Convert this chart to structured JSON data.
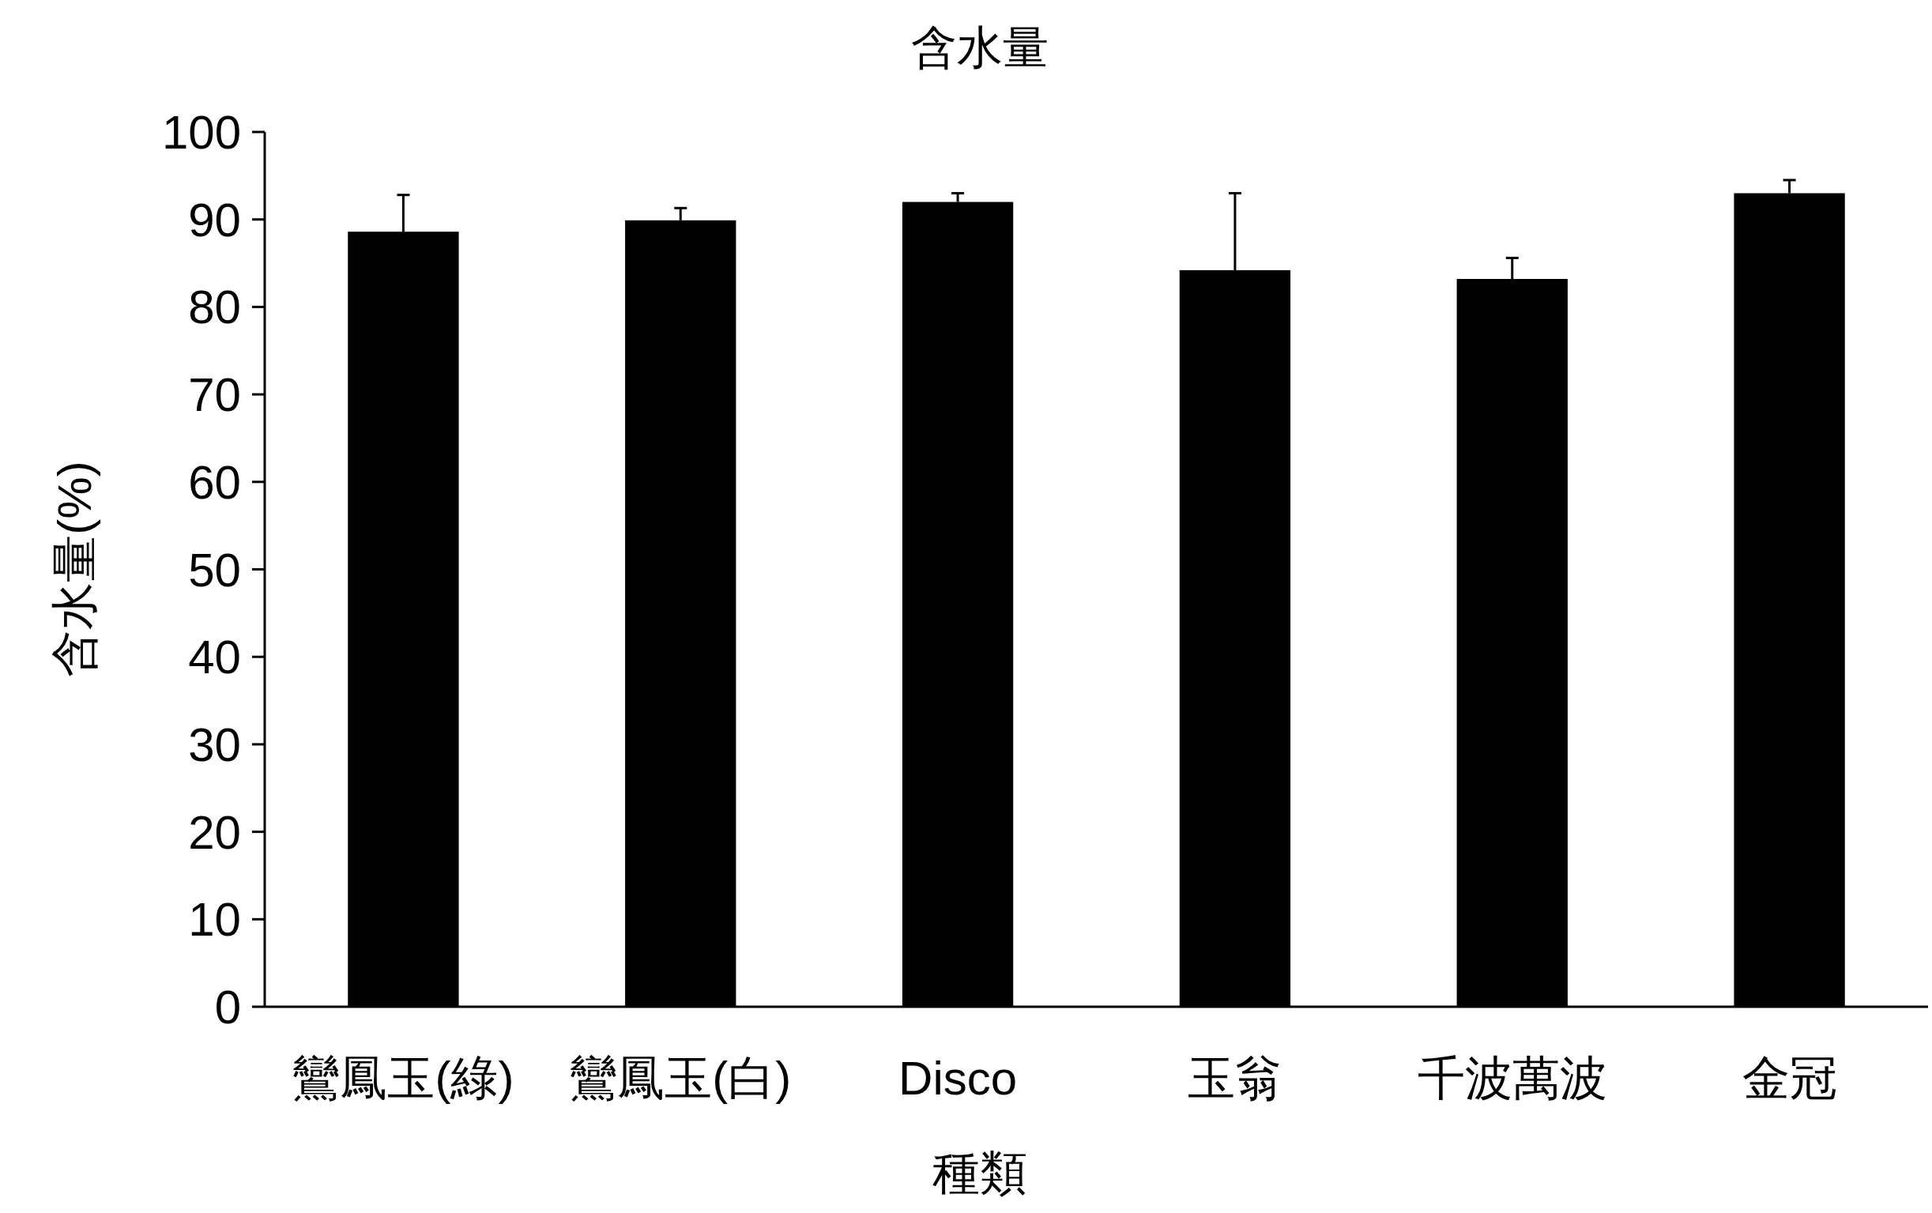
{
  "chart_data": {
    "type": "bar",
    "title": "含水量",
    "xlabel": "種類",
    "ylabel": "含水量(%)",
    "categories": [
      "鸞鳳玉(綠)",
      "鸞鳳玉(白)",
      "Disco",
      "玉翁",
      "千波萬波",
      "金冠"
    ],
    "values": [
      88.6,
      89.9,
      92.0,
      84.2,
      83.2,
      93.0
    ],
    "color": "#000000",
    "errors": [
      [
        88.6,
        92.8
      ],
      [
        89.9,
        91.3
      ],
      [
        92.0,
        93.0
      ],
      [
        84.2,
        93.0
      ],
      [
        83.2,
        85.6
      ],
      [
        93.0,
        94.5
      ]
    ],
    "ylim": [
      0,
      100
    ],
    "yticks": [
      0,
      10,
      20,
      30,
      40,
      50,
      60,
      70,
      80,
      90,
      100
    ]
  }
}
